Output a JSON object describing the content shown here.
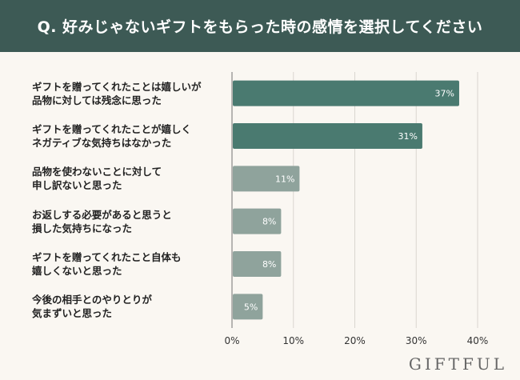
{
  "header": {
    "title": "Q. 好みじゃないギフトをもらった時の感情を選択してください"
  },
  "logo": {
    "text": "GIFTFUL"
  },
  "colors": {
    "header_bg": "#3d5a55",
    "bar_dark": "#4a7a70",
    "bar_light": "#8fa39c",
    "grid": "#d9d6d0",
    "background": "#faf7f2"
  },
  "chart_data": {
    "type": "bar",
    "orientation": "horizontal",
    "categories": [
      "ギフトを贈ってくれたことは嬉しいが\n品物に対しては残念に思った",
      "ギフトを贈ってくれたことが嬉しく\nネガティブな気持ちはなかった",
      "品物を使わないことに対して\n申し訳ないと思った",
      "お返しする必要があると思うと\n損した気持ちになった",
      "ギフトを贈ってくれたこと自体も\n嬉しくないと思った",
      "今後の相手とのやりとりが\n気まずいと思った"
    ],
    "values": [
      37,
      31,
      11,
      8,
      8,
      5
    ],
    "value_labels": [
      "37%",
      "31%",
      "11%",
      "8%",
      "8%",
      "5%"
    ],
    "xlim": [
      0,
      40
    ],
    "xticks": [
      "0%",
      "10%",
      "20%",
      "30%",
      "40%"
    ],
    "grid": true
  }
}
